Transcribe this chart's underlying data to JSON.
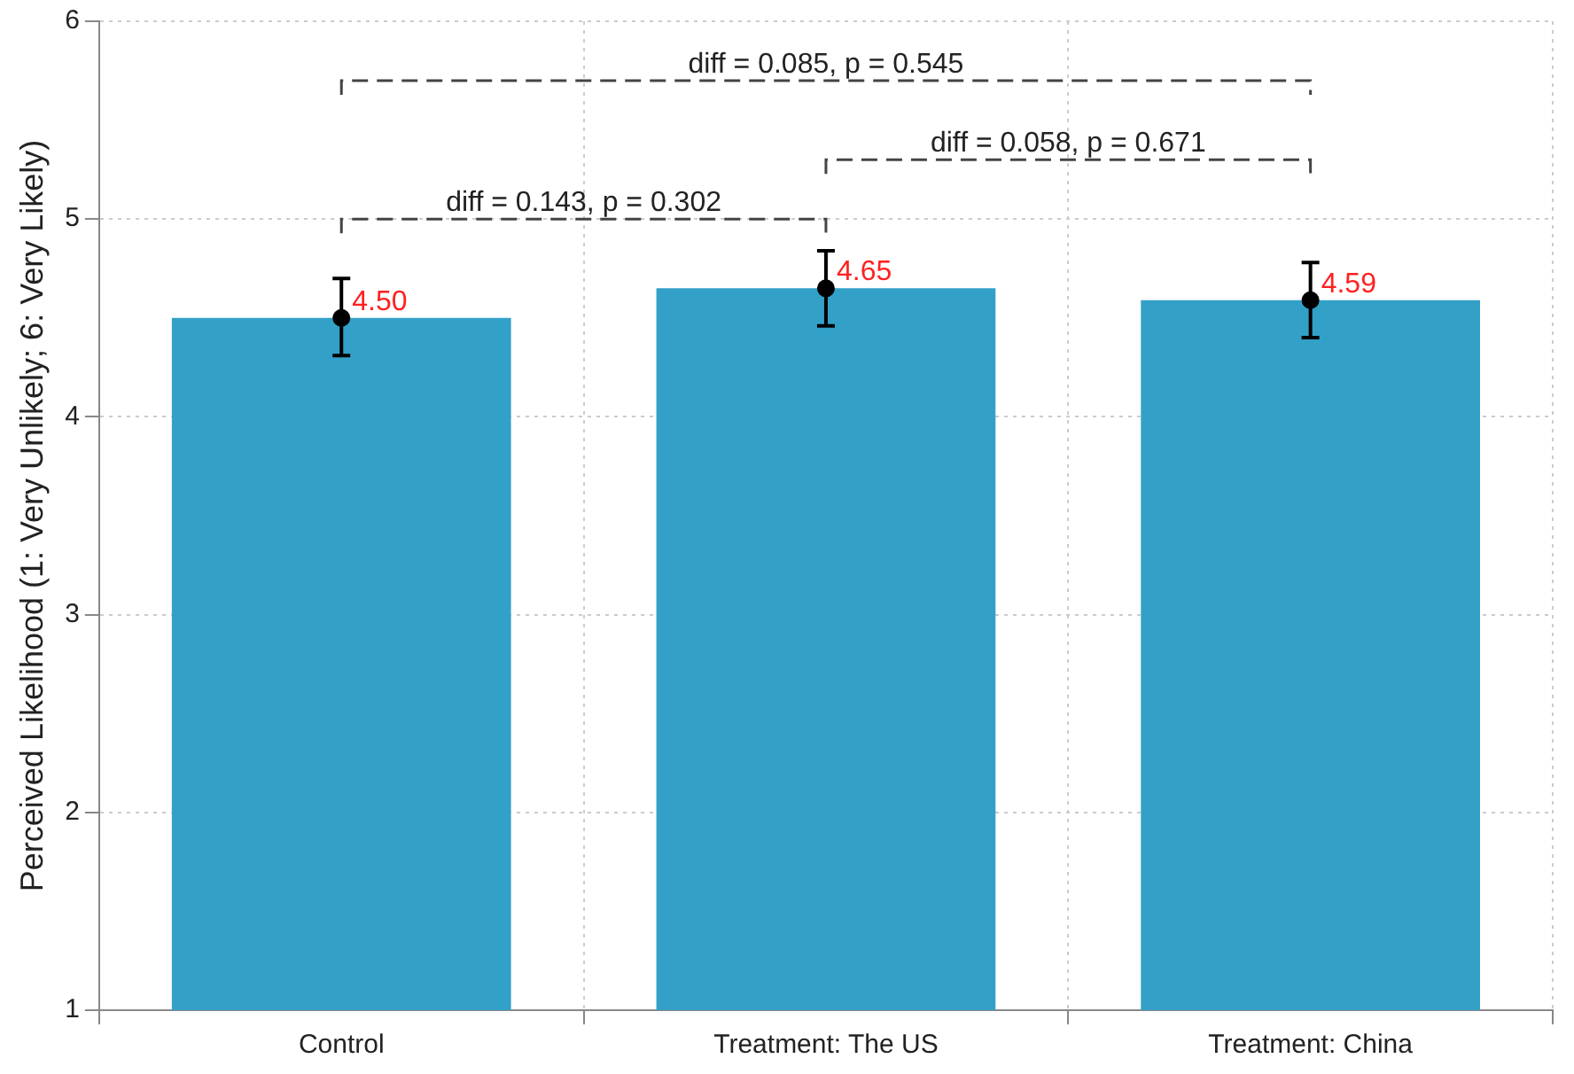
{
  "chart_data": {
    "type": "bar",
    "ylabel": "Perceived Likelihood (1: Very Unlikely; 6: Very Likely)",
    "categories": [
      "Control",
      "Treatment: The US",
      "Treatment: China"
    ],
    "series": [
      {
        "color": "#33a0c8",
        "values": [
          4.5,
          4.65,
          4.59
        ],
        "errors": [
          [
            4.31,
            4.7
          ],
          [
            4.46,
            4.84
          ],
          [
            4.4,
            4.78
          ]
        ],
        "value_labels": [
          "4.50",
          "4.65",
          "4.59"
        ]
      },
      {
        "type": "scatter",
        "color": "#000000",
        "x": [
          "Control",
          "Treatment: The US",
          "Treatment: China"
        ],
        "values": [
          4.5,
          4.65,
          4.59
        ],
        "marker": "circle"
      }
    ],
    "ylim": [
      1,
      6
    ],
    "yticks": [
      1,
      2,
      3,
      4,
      5,
      6
    ],
    "grid": true,
    "legend": false,
    "annotations": [
      "diff = 0.085, p = 0.545",
      "diff = 0.058, p = 0.671",
      "diff = 0.143, p = 0.302"
    ]
  }
}
